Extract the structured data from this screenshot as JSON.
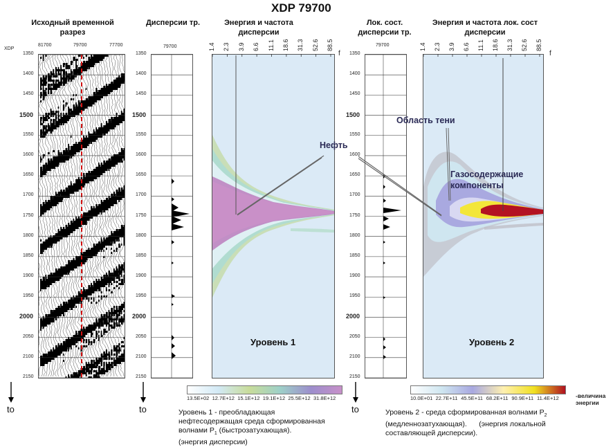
{
  "title": "XDP 79700",
  "headers": {
    "seismic": "Исходный временной разрез",
    "dispersion": "Дисперсии тр.",
    "energy1": "Энергия и частота дисперсии",
    "localdisp": "Лок. сост. дисперсии тр.",
    "energy2": "Энергия и частота лок. сост дисперсии"
  },
  "seismic_top_labels": {
    "xdp": "XDP",
    "left": "81700",
    "mid": "79700",
    "right": "77700"
  },
  "trace_label": "79700",
  "time_ticks": [
    {
      "v": "1350",
      "b": false
    },
    {
      "v": "1400",
      "b": false
    },
    {
      "v": "1450",
      "b": false
    },
    {
      "v": "1500",
      "b": true
    },
    {
      "v": "1550",
      "b": false
    },
    {
      "v": "1600",
      "b": false
    },
    {
      "v": "1650",
      "b": false
    },
    {
      "v": "1700",
      "b": false
    },
    {
      "v": "1750",
      "b": false
    },
    {
      "v": "1800",
      "b": false
    },
    {
      "v": "1850",
      "b": false
    },
    {
      "v": "1900",
      "b": false
    },
    {
      "v": "1950",
      "b": false
    },
    {
      "v": "2000",
      "b": true
    },
    {
      "v": "2050",
      "b": false
    },
    {
      "v": "2100",
      "b": false
    },
    {
      "v": "2150",
      "b": false
    }
  ],
  "freq_ticks": [
    "1.4",
    "2.3",
    "3.9",
    "6.6",
    "11.1",
    "18.6",
    "31.3",
    "52.6",
    "88.5"
  ],
  "freq_axis_label": "f",
  "level1": "Уровень 1",
  "level2": "Уровень 2",
  "annotations": {
    "oil": "Нефть",
    "shadow": "Область тени",
    "gas": "Газосодержащие компоненты"
  },
  "colorbar1": {
    "labels": [
      "13.5E+02",
      "12.7E+12",
      "15.1E+12",
      "19.1E+12",
      "25.5E+12",
      "31.8E+12"
    ],
    "colors": [
      "#ffffff",
      "#d2e9f5",
      "#c8dc9a",
      "#9ed0c8",
      "#9c8ecc",
      "#c790c9"
    ]
  },
  "colorbar2": {
    "labels": [
      "10.0E+01",
      "22.7E+11",
      "45.5E+11",
      "68.2E+11",
      "90.9E+11",
      "11.4E+12"
    ],
    "colors": [
      "#ffffff",
      "#cfe6f0",
      "#a8a8e0",
      "#fff0b0",
      "#f0e020",
      "#b01020"
    ]
  },
  "energy_label": "-величина энергии",
  "axis_to": "to",
  "footnote1": {
    "line1": "Уровень 1 - преобладающая",
    "line2": "нефтесодержащая среда сформированная",
    "line3_prefix": "волнами P",
    "line3_sub": "1",
    "line3_suffix": " (быстрозатухающая).",
    "line4": "(энергия дисперсии)"
  },
  "footnote2": {
    "line1_prefix": "Уровень 2 - среда сформированная волнами P",
    "line1_sub": "2",
    "line2": "(медленнозатухающая).      (энергия локальной",
    "line3": "составляющей дисперсии)."
  }
}
